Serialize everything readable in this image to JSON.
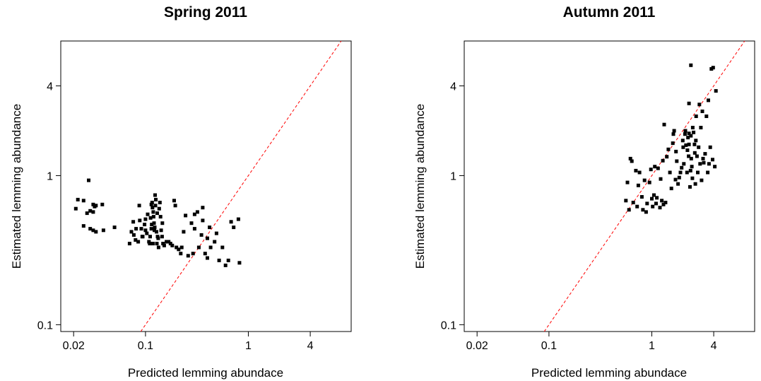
{
  "chart_data": [
    {
      "type": "scatter",
      "title": "Spring 2011",
      "xlabel": "Predicted lemming abundace",
      "ylabel": "Estimated lemming abundance",
      "x_scale": "log",
      "y_scale": "log",
      "xlim": [
        0.015,
        10
      ],
      "ylim": [
        0.09,
        8
      ],
      "x_ticks": [
        0.02,
        0.1,
        1,
        4
      ],
      "x_tick_labels": [
        "0.02",
        "0.1",
        "1",
        "4"
      ],
      "y_ticks": [
        0.1,
        1,
        4
      ],
      "y_tick_labels": [
        "0.1",
        "1",
        "4"
      ],
      "reference_line": "1:1 dashed red line (y = x)",
      "reference_color": "#ff0000",
      "point_color": "#000000",
      "grid": false,
      "legend": "none",
      "points": [
        [
          0.021,
          0.6
        ],
        [
          0.022,
          0.69
        ],
        [
          0.025,
          0.68
        ],
        [
          0.027,
          0.56
        ],
        [
          0.028,
          0.93
        ],
        [
          0.029,
          0.58
        ],
        [
          0.031,
          0.64
        ],
        [
          0.031,
          0.57
        ],
        [
          0.032,
          0.62
        ],
        [
          0.033,
          0.63
        ],
        [
          0.025,
          0.46
        ],
        [
          0.029,
          0.44
        ],
        [
          0.031,
          0.43
        ],
        [
          0.033,
          0.42
        ],
        [
          0.038,
          0.64
        ],
        [
          0.039,
          0.43
        ],
        [
          0.05,
          0.45
        ],
        [
          0.07,
          0.35
        ],
        [
          0.073,
          0.42
        ],
        [
          0.076,
          0.49
        ],
        [
          0.077,
          0.4
        ],
        [
          0.08,
          0.37
        ],
        [
          0.081,
          0.44
        ],
        [
          0.085,
          0.36
        ],
        [
          0.087,
          0.63
        ],
        [
          0.088,
          0.5
        ],
        [
          0.091,
          0.44
        ],
        [
          0.093,
          0.39
        ],
        [
          0.094,
          0.39
        ],
        [
          0.098,
          0.47
        ],
        [
          0.1,
          0.43
        ],
        [
          0.1,
          0.51
        ],
        [
          0.103,
          0.41
        ],
        [
          0.105,
          0.55
        ],
        [
          0.108,
          0.36
        ],
        [
          0.11,
          0.35
        ],
        [
          0.111,
          0.39
        ],
        [
          0.112,
          0.52
        ],
        [
          0.114,
          0.44
        ],
        [
          0.114,
          0.64
        ],
        [
          0.115,
          0.47
        ],
        [
          0.116,
          0.66
        ],
        [
          0.117,
          0.61
        ],
        [
          0.118,
          0.35
        ],
        [
          0.119,
          0.57
        ],
        [
          0.12,
          0.53
        ],
        [
          0.121,
          0.48
        ],
        [
          0.122,
          0.43
        ],
        [
          0.123,
          0.45
        ],
        [
          0.124,
          0.74
        ],
        [
          0.125,
          0.63
        ],
        [
          0.126,
          0.69
        ],
        [
          0.128,
          0.42
        ],
        [
          0.129,
          0.35
        ],
        [
          0.13,
          0.56
        ],
        [
          0.131,
          0.39
        ],
        [
          0.133,
          0.38
        ],
        [
          0.134,
          0.33
        ],
        [
          0.136,
          0.6
        ],
        [
          0.138,
          0.66
        ],
        [
          0.14,
          0.53
        ],
        [
          0.142,
          0.43
        ],
        [
          0.145,
          0.39
        ],
        [
          0.146,
          0.48
        ],
        [
          0.148,
          0.35
        ],
        [
          0.152,
          0.34
        ],
        [
          0.16,
          0.36
        ],
        [
          0.168,
          0.36
        ],
        [
          0.175,
          0.35
        ],
        [
          0.182,
          0.34
        ],
        [
          0.19,
          0.68
        ],
        [
          0.195,
          0.63
        ],
        [
          0.2,
          0.33
        ],
        [
          0.21,
          0.32
        ],
        [
          0.22,
          0.3
        ],
        [
          0.225,
          0.33
        ],
        [
          0.235,
          0.42
        ],
        [
          0.245,
          0.54
        ],
        [
          0.26,
          0.29
        ],
        [
          0.28,
          0.48
        ],
        [
          0.29,
          0.3
        ],
        [
          0.3,
          0.44
        ],
        [
          0.32,
          0.57
        ],
        [
          0.33,
          0.33
        ],
        [
          0.35,
          0.4
        ],
        [
          0.36,
          0.5
        ],
        [
          0.38,
          0.3
        ],
        [
          0.4,
          0.28
        ],
        [
          0.42,
          0.45
        ],
        [
          0.43,
          0.33
        ],
        [
          0.4,
          0.38
        ],
        [
          0.47,
          0.36
        ],
        [
          0.49,
          0.41
        ],
        [
          0.52,
          0.27
        ],
        [
          0.56,
          0.33
        ],
        [
          0.6,
          0.25
        ],
        [
          0.64,
          0.27
        ],
        [
          0.68,
          0.49
        ],
        [
          0.72,
          0.45
        ],
        [
          0.8,
          0.51
        ],
        [
          0.82,
          0.26
        ],
        [
          0.3,
          0.55
        ],
        [
          0.36,
          0.61
        ]
      ]
    },
    {
      "type": "scatter",
      "title": "Autumn 2011",
      "xlabel": "Predicted lemming abundace",
      "ylabel": "Estimated lemming abundance",
      "x_scale": "log",
      "y_scale": "log",
      "xlim": [
        0.015,
        10
      ],
      "ylim": [
        0.09,
        8
      ],
      "x_ticks": [
        0.02,
        0.1,
        1,
        4
      ],
      "x_tick_labels": [
        "0.02",
        "0.1",
        "1",
        "4"
      ],
      "y_ticks": [
        0.1,
        1,
        4
      ],
      "y_tick_labels": [
        "0.1",
        "1",
        "4"
      ],
      "reference_line": "1:1 dashed red line (y = x)",
      "reference_color": "#ff0000",
      "point_color": "#000000",
      "grid": false,
      "legend": "none",
      "points": [
        [
          0.56,
          0.68
        ],
        [
          0.58,
          0.9
        ],
        [
          0.6,
          0.59
        ],
        [
          0.62,
          1.3
        ],
        [
          0.64,
          1.25
        ],
        [
          0.66,
          0.66
        ],
        [
          0.7,
          1.08
        ],
        [
          0.72,
          0.62
        ],
        [
          0.74,
          0.86
        ],
        [
          0.76,
          1.05
        ],
        [
          0.8,
          0.72
        ],
        [
          0.82,
          0.59
        ],
        [
          0.85,
          0.93
        ],
        [
          0.88,
          0.57
        ],
        [
          0.9,
          0.65
        ],
        [
          0.95,
          0.9
        ],
        [
          0.98,
          1.1
        ],
        [
          1.0,
          0.7
        ],
        [
          1.02,
          0.62
        ],
        [
          1.05,
          0.74
        ],
        [
          1.07,
          1.15
        ],
        [
          1.1,
          0.65
        ],
        [
          1.12,
          0.71
        ],
        [
          1.15,
          1.12
        ],
        [
          1.2,
          0.61
        ],
        [
          1.22,
          0.95
        ],
        [
          1.25,
          0.68
        ],
        [
          1.28,
          1.26
        ],
        [
          1.3,
          0.64
        ],
        [
          1.32,
          2.2
        ],
        [
          1.36,
          0.66
        ],
        [
          1.4,
          1.34
        ],
        [
          1.45,
          1.5
        ],
        [
          1.5,
          1.05
        ],
        [
          1.55,
          0.82
        ],
        [
          1.6,
          1.65
        ],
        [
          1.62,
          1.9
        ],
        [
          1.65,
          2.0
        ],
        [
          1.7,
          0.94
        ],
        [
          1.72,
          1.45
        ],
        [
          1.75,
          1.25
        ],
        [
          1.8,
          0.88
        ],
        [
          1.85,
          0.97
        ],
        [
          1.9,
          1.05
        ],
        [
          1.95,
          1.13
        ],
        [
          2.0,
          1.72
        ],
        [
          2.02,
          1.55
        ],
        [
          2.05,
          1.2
        ],
        [
          2.1,
          1.9
        ],
        [
          2.12,
          2.0
        ],
        [
          2.15,
          1.6
        ],
        [
          2.2,
          1.05
        ],
        [
          2.22,
          1.48
        ],
        [
          2.25,
          1.8
        ],
        [
          2.28,
          1.35
        ],
        [
          2.3,
          1.92
        ],
        [
          2.3,
          1.62
        ],
        [
          2.35,
          0.84
        ],
        [
          2.38,
          1.08
        ],
        [
          2.4,
          1.85
        ],
        [
          2.42,
          1.3
        ],
        [
          2.45,
          1.15
        ],
        [
          2.48,
          0.96
        ],
        [
          2.5,
          2.1
        ],
        [
          2.55,
          1.95
        ],
        [
          2.6,
          1.62
        ],
        [
          2.62,
          1.42
        ],
        [
          2.65,
          0.88
        ],
        [
          2.68,
          1.72
        ],
        [
          2.7,
          2.5
        ],
        [
          2.75,
          1.35
        ],
        [
          2.8,
          1.05
        ],
        [
          2.85,
          1.55
        ],
        [
          2.9,
          3.0
        ],
        [
          2.95,
          1.2
        ],
        [
          3.0,
          2.1
        ],
        [
          3.05,
          0.93
        ],
        [
          3.1,
          2.7
        ],
        [
          3.15,
          1.3
        ],
        [
          3.2,
          1.22
        ],
        [
          3.3,
          1.4
        ],
        [
          3.4,
          2.5
        ],
        [
          3.5,
          1.05
        ],
        [
          3.55,
          3.2
        ],
        [
          3.6,
          1.2
        ],
        [
          3.7,
          1.55
        ],
        [
          3.8,
          5.2
        ],
        [
          3.9,
          1.28
        ],
        [
          4.1,
          1.15
        ],
        [
          4.2,
          3.7
        ],
        [
          2.3,
          3.05
        ],
        [
          2.4,
          5.5
        ],
        [
          3.95,
          5.3
        ],
        [
          3.1,
          2.7
        ]
      ]
    }
  ]
}
